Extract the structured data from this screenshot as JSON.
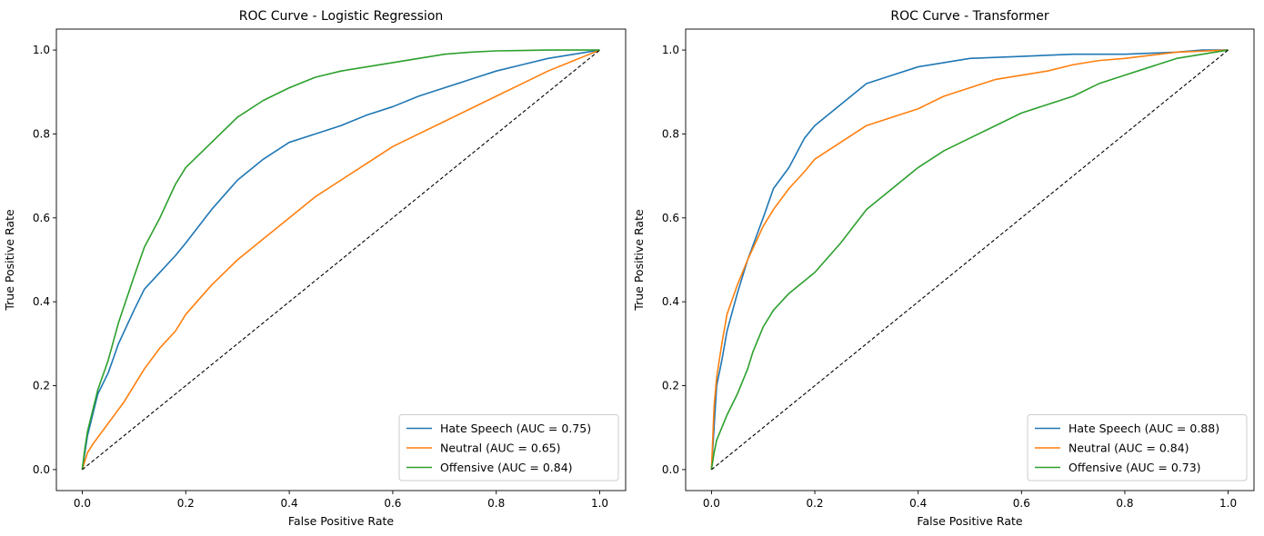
{
  "chart_data": [
    {
      "type": "line",
      "title": "ROC Curve - Logistic Regression",
      "xlabel": "False Positive Rate",
      "ylabel": "True Positive Rate",
      "xlim": [
        -0.05,
        1.05
      ],
      "ylim": [
        -0.05,
        1.05
      ],
      "xticks": [
        "0.0",
        "0.2",
        "0.4",
        "0.6",
        "0.8",
        "1.0"
      ],
      "yticks": [
        "0.0",
        "0.2",
        "0.4",
        "0.6",
        "0.8",
        "1.0"
      ],
      "grid": false,
      "legend_position": "lower-right",
      "series": [
        {
          "name": "Hate Speech (AUC = 0.75)",
          "color": "#1f77b4",
          "x": [
            0,
            0.005,
            0.01,
            0.02,
            0.03,
            0.05,
            0.07,
            0.1,
            0.12,
            0.15,
            0.18,
            0.2,
            0.25,
            0.3,
            0.35,
            0.4,
            0.45,
            0.5,
            0.55,
            0.6,
            0.65,
            0.7,
            0.75,
            0.8,
            0.85,
            0.9,
            0.95,
            1.0
          ],
          "y": [
            0,
            0.04,
            0.08,
            0.13,
            0.18,
            0.23,
            0.3,
            0.38,
            0.43,
            0.47,
            0.51,
            0.54,
            0.62,
            0.69,
            0.74,
            0.78,
            0.8,
            0.82,
            0.845,
            0.865,
            0.89,
            0.91,
            0.93,
            0.95,
            0.965,
            0.98,
            0.99,
            1.0
          ]
        },
        {
          "name": "Neutral (AUC = 0.65)",
          "color": "#ff7f0e",
          "x": [
            0,
            0.005,
            0.01,
            0.02,
            0.05,
            0.08,
            0.1,
            0.12,
            0.15,
            0.18,
            0.2,
            0.25,
            0.3,
            0.35,
            0.4,
            0.45,
            0.5,
            0.55,
            0.6,
            0.65,
            0.7,
            0.75,
            0.8,
            0.85,
            0.9,
            0.95,
            1.0
          ],
          "y": [
            0,
            0.02,
            0.04,
            0.06,
            0.11,
            0.16,
            0.2,
            0.24,
            0.29,
            0.33,
            0.37,
            0.44,
            0.5,
            0.55,
            0.6,
            0.65,
            0.69,
            0.73,
            0.77,
            0.8,
            0.83,
            0.86,
            0.89,
            0.92,
            0.95,
            0.975,
            1.0
          ]
        },
        {
          "name": "Offensive (AUC = 0.84)",
          "color": "#2ca02c",
          "x": [
            0,
            0.005,
            0.01,
            0.02,
            0.03,
            0.05,
            0.07,
            0.1,
            0.12,
            0.15,
            0.18,
            0.2,
            0.25,
            0.3,
            0.35,
            0.4,
            0.45,
            0.5,
            0.55,
            0.6,
            0.65,
            0.7,
            0.75,
            0.8,
            0.85,
            0.9,
            0.95,
            1.0
          ],
          "y": [
            0,
            0.05,
            0.09,
            0.14,
            0.19,
            0.26,
            0.35,
            0.46,
            0.53,
            0.6,
            0.68,
            0.72,
            0.78,
            0.84,
            0.88,
            0.91,
            0.935,
            0.95,
            0.96,
            0.97,
            0.98,
            0.99,
            0.995,
            0.998,
            0.999,
            1.0,
            1.0,
            1.0
          ]
        },
        {
          "name": "",
          "color": "#000000",
          "dashed": true,
          "x": [
            0,
            1
          ],
          "y": [
            0,
            1
          ]
        }
      ]
    },
    {
      "type": "line",
      "title": "ROC Curve - Transformer",
      "xlabel": "False Positive Rate",
      "ylabel": "True Positive Rate",
      "xlim": [
        -0.05,
        1.05
      ],
      "ylim": [
        -0.05,
        1.05
      ],
      "xticks": [
        "0.0",
        "0.2",
        "0.4",
        "0.6",
        "0.8",
        "1.0"
      ],
      "yticks": [
        "0.0",
        "0.2",
        "0.4",
        "0.6",
        "0.8",
        "1.0"
      ],
      "grid": false,
      "legend_position": "lower-right",
      "series": [
        {
          "name": "Hate Speech (AUC = 0.88)",
          "color": "#1f77b4",
          "x": [
            0,
            0.005,
            0.01,
            0.02,
            0.03,
            0.05,
            0.07,
            0.1,
            0.12,
            0.15,
            0.18,
            0.2,
            0.25,
            0.3,
            0.35,
            0.4,
            0.45,
            0.5,
            0.6,
            0.7,
            0.8,
            0.9,
            0.95,
            1.0
          ],
          "y": [
            0,
            0.1,
            0.2,
            0.26,
            0.33,
            0.42,
            0.5,
            0.6,
            0.67,
            0.72,
            0.79,
            0.82,
            0.87,
            0.92,
            0.94,
            0.96,
            0.97,
            0.98,
            0.985,
            0.99,
            0.99,
            0.995,
            1.0,
            1.0
          ]
        },
        {
          "name": "Neutral (AUC = 0.84)",
          "color": "#ff7f0e",
          "x": [
            0,
            0.005,
            0.01,
            0.02,
            0.03,
            0.05,
            0.07,
            0.1,
            0.12,
            0.15,
            0.18,
            0.2,
            0.25,
            0.3,
            0.35,
            0.4,
            0.45,
            0.5,
            0.55,
            0.6,
            0.65,
            0.7,
            0.75,
            0.8,
            0.9,
            1.0
          ],
          "y": [
            0,
            0.15,
            0.22,
            0.3,
            0.37,
            0.44,
            0.5,
            0.58,
            0.62,
            0.67,
            0.71,
            0.74,
            0.78,
            0.82,
            0.84,
            0.86,
            0.89,
            0.91,
            0.93,
            0.94,
            0.95,
            0.965,
            0.975,
            0.98,
            0.995,
            1.0
          ]
        },
        {
          "name": "Offensive (AUC = 0.73)",
          "color": "#2ca02c",
          "x": [
            0,
            0.005,
            0.01,
            0.02,
            0.03,
            0.05,
            0.07,
            0.08,
            0.1,
            0.12,
            0.15,
            0.18,
            0.2,
            0.25,
            0.3,
            0.35,
            0.4,
            0.45,
            0.5,
            0.55,
            0.6,
            0.65,
            0.7,
            0.75,
            0.8,
            0.85,
            0.9,
            0.95,
            1.0
          ],
          "y": [
            0,
            0.04,
            0.07,
            0.1,
            0.13,
            0.18,
            0.24,
            0.28,
            0.34,
            0.38,
            0.42,
            0.45,
            0.47,
            0.54,
            0.62,
            0.67,
            0.72,
            0.76,
            0.79,
            0.82,
            0.85,
            0.87,
            0.89,
            0.92,
            0.94,
            0.96,
            0.98,
            0.99,
            1.0
          ]
        },
        {
          "name": "",
          "color": "#000000",
          "dashed": true,
          "x": [
            0,
            1
          ],
          "y": [
            0,
            1
          ]
        }
      ]
    }
  ]
}
